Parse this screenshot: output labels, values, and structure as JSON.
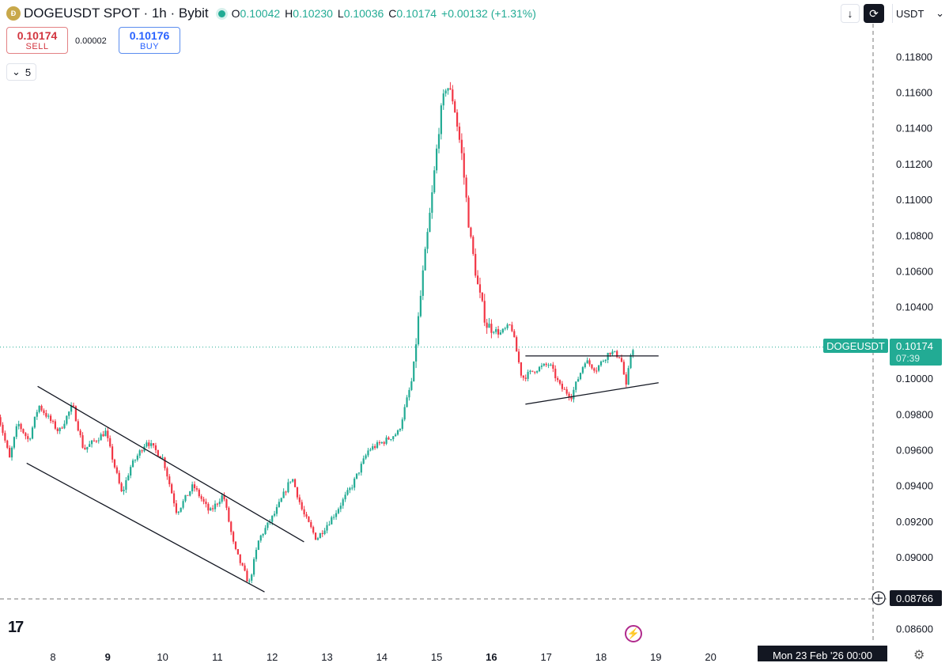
{
  "header": {
    "title": "DOGEUSDT SPOT · 1h · Bybit",
    "open_label": "O",
    "open": "0.10042",
    "high_label": "H",
    "high": "0.10230",
    "low_label": "L",
    "low": "0.10036",
    "close_label": "C",
    "close": "0.10174",
    "change": "+0.00132 (+1.31%)"
  },
  "trade": {
    "sell_price": "0.10174",
    "sell_label": "SELL",
    "spread": "0.00002",
    "buy_price": "0.10176",
    "buy_label": "BUY"
  },
  "indicator_toggle": {
    "count": "5"
  },
  "toolbar": {
    "currency": "USDT"
  },
  "bottom": {
    "date_label": "Mon 23 Feb '26   00:00"
  },
  "colors": {
    "up": "#22ab94",
    "down": "#f23645",
    "accent": "#22ab94"
  },
  "icons": [
    "download-icon",
    "refresh-icon",
    "chevron-down-icon",
    "crosshair-plus-icon",
    "bolt-icon",
    "gear-icon",
    "tradingview-logo"
  ],
  "chart_data": {
    "type": "candlestick",
    "symbol": "DOGEUSDT",
    "timeframe": "1h",
    "ylim": [
      0.0851,
      0.119
    ],
    "y_ticks": [
      "0.11800",
      "0.11600",
      "0.11400",
      "0.11200",
      "0.11000",
      "0.10800",
      "0.10600",
      "0.10400",
      "0.10000",
      "0.09800",
      "0.09600",
      "0.09400",
      "0.09200",
      "0.09000",
      "0.08600"
    ],
    "x_ticks": [
      {
        "day": 8,
        "label": "8"
      },
      {
        "day": 9,
        "label": "9"
      },
      {
        "day": 10,
        "label": "10"
      },
      {
        "day": 11,
        "label": "11"
      },
      {
        "day": 12,
        "label": "12"
      },
      {
        "day": 13,
        "label": "13"
      },
      {
        "day": 14,
        "label": "14"
      },
      {
        "day": 15,
        "label": "15"
      },
      {
        "day": 16,
        "label": "16"
      },
      {
        "day": 17,
        "label": "17"
      },
      {
        "day": 18,
        "label": "18"
      },
      {
        "day": 19,
        "label": "19"
      },
      {
        "day": 20,
        "label": "20"
      }
    ],
    "x_range_days": [
      7.0,
      21.2
    ],
    "last_price": {
      "symbol": "DOGEUSDT",
      "value": "0.10174",
      "value_num": 0.10174,
      "countdown": "07:39"
    },
    "crosshair_price": {
      "value": "0.08766",
      "value_num": 0.08766
    },
    "price_anchors": [
      [
        7.0,
        0.0985
      ],
      [
        7.25,
        0.0955
      ],
      [
        7.4,
        0.0975
      ],
      [
        7.6,
        0.0965
      ],
      [
        7.78,
        0.0985
      ],
      [
        8.15,
        0.097
      ],
      [
        8.4,
        0.0985
      ],
      [
        8.6,
        0.096
      ],
      [
        9.0,
        0.097
      ],
      [
        9.3,
        0.0935
      ],
      [
        9.45,
        0.095
      ],
      [
        9.75,
        0.0965
      ],
      [
        10.05,
        0.0955
      ],
      [
        10.3,
        0.0925
      ],
      [
        10.6,
        0.094
      ],
      [
        10.9,
        0.0925
      ],
      [
        11.15,
        0.0935
      ],
      [
        11.35,
        0.0905
      ],
      [
        11.62,
        0.0885
      ],
      [
        11.8,
        0.091
      ],
      [
        12.1,
        0.0925
      ],
      [
        12.4,
        0.0945
      ],
      [
        12.6,
        0.0925
      ],
      [
        12.85,
        0.091
      ],
      [
        13.2,
        0.0925
      ],
      [
        13.5,
        0.094
      ],
      [
        13.8,
        0.096
      ],
      [
        14.1,
        0.0965
      ],
      [
        14.35,
        0.097
      ],
      [
        14.6,
        0.1
      ],
      [
        14.78,
        0.1055
      ],
      [
        14.95,
        0.11
      ],
      [
        15.1,
        0.1145
      ],
      [
        15.22,
        0.1165
      ],
      [
        15.35,
        0.1155
      ],
      [
        15.5,
        0.1125
      ],
      [
        15.65,
        0.108
      ],
      [
        15.8,
        0.105
      ],
      [
        15.95,
        0.103
      ],
      [
        16.2,
        0.1025
      ],
      [
        16.4,
        0.103
      ],
      [
        16.6,
        0.1
      ],
      [
        16.85,
        0.1005
      ],
      [
        17.1,
        0.1008
      ],
      [
        17.3,
        0.0995
      ],
      [
        17.5,
        0.099
      ],
      [
        17.75,
        0.101
      ],
      [
        17.95,
        0.1005
      ],
      [
        18.2,
        0.1015
      ],
      [
        18.4,
        0.1012
      ],
      [
        18.5,
        0.0995
      ],
      [
        18.6,
        0.1017
      ]
    ],
    "trendlines": [
      {
        "name": "channel-upper",
        "from": [
          7.72,
          0.09955
        ],
        "to": [
          12.58,
          0.09085
        ]
      },
      {
        "name": "channel-lower",
        "from": [
          7.52,
          0.09525
        ],
        "to": [
          11.86,
          0.08805
        ]
      },
      {
        "name": "range-top",
        "from": [
          16.62,
          0.10125
        ],
        "to": [
          19.05,
          0.10125
        ]
      },
      {
        "name": "range-bottom",
        "from": [
          16.62,
          0.09855
        ],
        "to": [
          19.05,
          0.09975
        ]
      }
    ]
  }
}
